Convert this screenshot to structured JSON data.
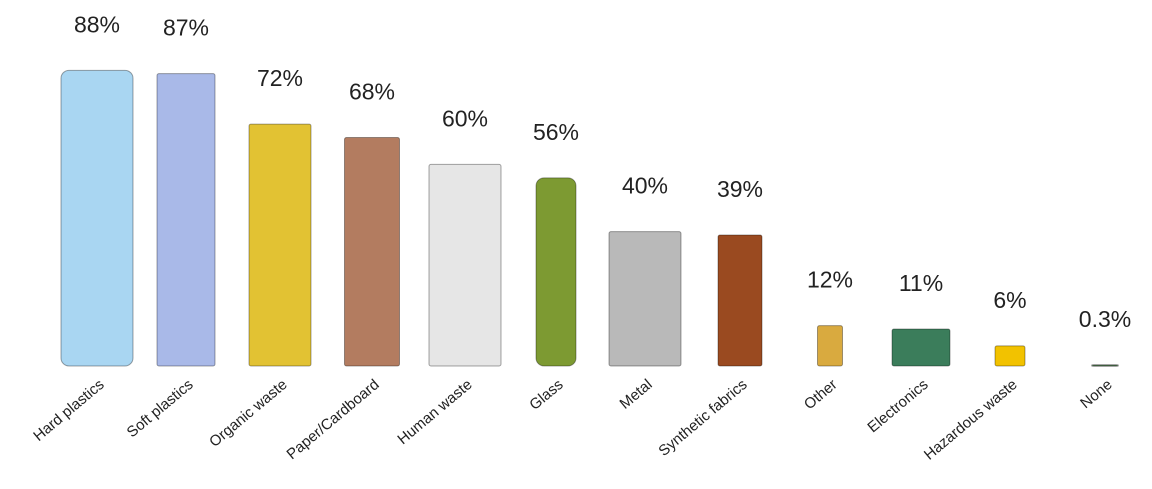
{
  "chart_data": {
    "type": "bar",
    "categories": [
      "Hard plastics",
      "Soft plastics",
      "Organic waste",
      "Paper/Cardboard",
      "Human waste",
      "Glass",
      "Metal",
      "Synthetic fabrics",
      "Other",
      "Electronics",
      "Hazardous waste",
      "None"
    ],
    "values": [
      88,
      87,
      72,
      68,
      60,
      56,
      40,
      39,
      12,
      11,
      6,
      0.3
    ],
    "value_labels": [
      "88%",
      "87%",
      "72%",
      "68%",
      "60%",
      "56%",
      "40%",
      "39%",
      "12%",
      "11%",
      "6%",
      "0.3%"
    ],
    "colors": [
      "#a9d6f2",
      "#a9b9e8",
      "#e2c233",
      "#b37c60",
      "#e6e6e6",
      "#7d9a32",
      "#b9b9b9",
      "#9a4a20",
      "#d9aa3f",
      "#3b7d5b",
      "#f2c200",
      "#5f8f5f"
    ]
  }
}
